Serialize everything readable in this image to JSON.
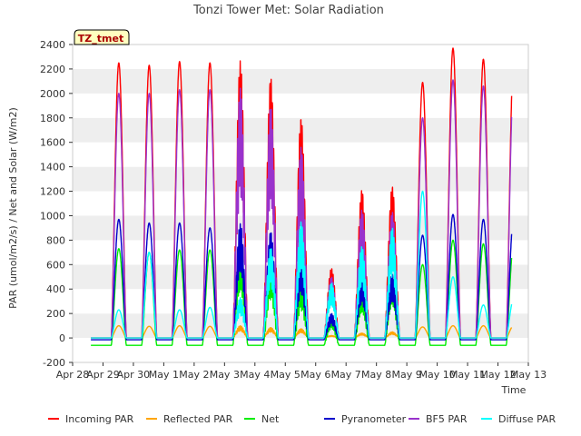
{
  "chart_data": {
    "type": "line",
    "title": "Tonzi Tower Met: Solar Radiation",
    "xlabel": "Time",
    "ylabel": "PAR (umol/m2/s) / Net and Solar (W/m2)",
    "ylim": [
      -200,
      2400
    ],
    "yticks": [
      -200,
      0,
      200,
      400,
      600,
      800,
      1000,
      1200,
      1400,
      1600,
      1800,
      2000,
      2200,
      2400
    ],
    "xlim": [
      0,
      15
    ],
    "x_tick_labels": [
      "Apr 28",
      "Apr 29",
      "Apr 30",
      "May 1",
      "May 2",
      "May 3",
      "May 4",
      "May 5",
      "May 6",
      "May 7",
      "May 8",
      "May 9",
      "May 10",
      "May 11",
      "May 12",
      "May 13"
    ],
    "x_unit": "days since Apr 28",
    "annotation": "TZ_tmet",
    "grid": "horizontal bands",
    "legend_position": "bottom",
    "series": [
      {
        "name": "Incoming PAR",
        "color": "#ff0000",
        "daily_peaks": [
          2250,
          2230,
          2260,
          2250,
          2270,
          2130,
          1800,
          570,
          1210,
          1240,
          2090,
          2370,
          2280,
          2300
        ]
      },
      {
        "name": "Reflected PAR",
        "color": "#ffa500",
        "daily_peaks": [
          100,
          95,
          100,
          95,
          100,
          85,
          75,
          20,
          40,
          50,
          90,
          100,
          100,
          100
        ]
      },
      {
        "name": "Net",
        "color": "#00ee00",
        "daily_peaks": [
          730,
          700,
          720,
          720,
          700,
          600,
          450,
          180,
          400,
          500,
          600,
          800,
          770,
          770
        ],
        "night_value": -60
      },
      {
        "name": "Pyranometer",
        "color": "#0000cc",
        "daily_peaks": [
          970,
          940,
          940,
          900,
          940,
          870,
          640,
          200,
          500,
          520,
          840,
          1010,
          970,
          990
        ],
        "night_value": -15
      },
      {
        "name": "BF5 PAR",
        "color": "#9932cc",
        "daily_peaks": [
          2000,
          2000,
          2030,
          2030,
          2050,
          1900,
          1560,
          500,
          1050,
          1030,
          1800,
          2110,
          2060,
          2100
        ]
      },
      {
        "name": "Diffuse PAR",
        "color": "#00ffff",
        "daily_peaks": [
          230,
          700,
          230,
          250,
          330,
          740,
          950,
          450,
          750,
          900,
          1200,
          500,
          270,
          320
        ]
      }
    ]
  }
}
